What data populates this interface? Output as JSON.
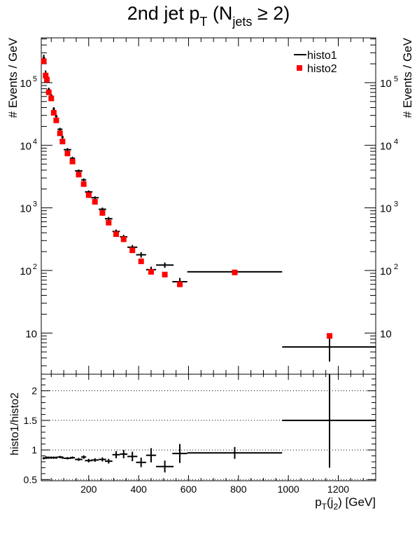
{
  "chart_data": [
    {
      "type": "scatter",
      "title": "2nd jet p_T (N_jets ≥ 2)",
      "title_parts": {
        "main": "2nd jet p",
        "sub1": "T",
        "mid": " (N",
        "sub2": "jets",
        "rel": " ≥ 2)"
      },
      "ylabel": "# Events / GeV",
      "yscale": "log",
      "xlim": [
        10,
        1350
      ],
      "ylim": [
        2.2,
        520000
      ],
      "ytick_labels": [
        "10",
        "10^2",
        "10^3",
        "10^4",
        "10^5"
      ],
      "legend": {
        "placement": "top-right",
        "entries": [
          "histo1",
          "histo2"
        ]
      },
      "series": [
        {
          "name": "histo1",
          "style": "error-bar crosses",
          "color": "#000000",
          "points": [
            {
              "x": 20,
              "xerr": 5,
              "y": 250000,
              "yerr": 30000
            },
            {
              "x": 27.5,
              "xerr": 2.5,
              "y": 145000,
              "yerr": 12000
            },
            {
              "x": 32.5,
              "xerr": 2.5,
              "y": 125000,
              "yerr": 10000
            },
            {
              "x": 40,
              "xerr": 5,
              "y": 78000,
              "yerr": 5000
            },
            {
              "x": 50,
              "xerr": 5,
              "y": 62000,
              "yerr": 4000
            },
            {
              "x": 60,
              "xerr": 5,
              "y": 38000,
              "yerr": 2500
            },
            {
              "x": 70,
              "xerr": 5,
              "y": 29000,
              "yerr": 2000
            },
            {
              "x": 85,
              "xerr": 10,
              "y": 18000,
              "yerr": 1000
            },
            {
              "x": 95,
              "xerr": 5,
              "y": 13500,
              "yerr": 800
            },
            {
              "x": 115,
              "xerr": 15,
              "y": 8500,
              "yerr": 500
            },
            {
              "x": 135,
              "xerr": 10,
              "y": 6200,
              "yerr": 350
            },
            {
              "x": 160,
              "xerr": 15,
              "y": 3900,
              "yerr": 200
            },
            {
              "x": 180,
              "xerr": 10,
              "y": 2800,
              "yerr": 150
            },
            {
              "x": 200,
              "xerr": 15,
              "y": 1800,
              "yerr": 100
            },
            {
              "x": 225,
              "xerr": 15,
              "y": 1450,
              "yerr": 80
            },
            {
              "x": 255,
              "xerr": 15,
              "y": 950,
              "yerr": 60
            },
            {
              "x": 280,
              "xerr": 15,
              "y": 670,
              "yerr": 45
            },
            {
              "x": 310,
              "xerr": 15,
              "y": 420,
              "yerr": 30
            },
            {
              "x": 340,
              "xerr": 15,
              "y": 345,
              "yerr": 25
            },
            {
              "x": 375,
              "xerr": 20,
              "y": 235,
              "yerr": 20
            },
            {
              "x": 410,
              "xerr": 20,
              "y": 178,
              "yerr": 18
            },
            {
              "x": 450,
              "xerr": 20,
              "y": 103,
              "yerr": 12
            },
            {
              "x": 505,
              "xerr": 35,
              "y": 122,
              "yerr": 12
            },
            {
              "x": 565,
              "xerr": 30,
              "y": 66,
              "yerr": 10
            },
            {
              "x": 785,
              "xerr": 190,
              "y": 95,
              "yerr": 6
            },
            {
              "x": 1165,
              "xerr": 190,
              "y": 6,
              "yerr": 2.5
            }
          ]
        },
        {
          "name": "histo2",
          "style": "square markers",
          "color": "#ff0000",
          "points": [
            {
              "x": 20,
              "y": 220000
            },
            {
              "x": 27.5,
              "y": 130000
            },
            {
              "x": 32.5,
              "y": 112000
            },
            {
              "x": 40,
              "y": 70000
            },
            {
              "x": 50,
              "y": 56000
            },
            {
              "x": 60,
              "y": 33000
            },
            {
              "x": 70,
              "y": 25000
            },
            {
              "x": 85,
              "y": 15500
            },
            {
              "x": 95,
              "y": 11500
            },
            {
              "x": 115,
              "y": 7400
            },
            {
              "x": 135,
              "y": 5500
            },
            {
              "x": 160,
              "y": 3400
            },
            {
              "x": 180,
              "y": 2400
            },
            {
              "x": 200,
              "y": 1600
            },
            {
              "x": 225,
              "y": 1250
            },
            {
              "x": 255,
              "y": 830
            },
            {
              "x": 280,
              "y": 580
            },
            {
              "x": 310,
              "y": 380
            },
            {
              "x": 340,
              "y": 315
            },
            {
              "x": 375,
              "y": 210
            },
            {
              "x": 410,
              "y": 140
            },
            {
              "x": 450,
              "y": 95
            },
            {
              "x": 505,
              "y": 86
            },
            {
              "x": 565,
              "y": 60
            },
            {
              "x": 785,
              "y": 93
            },
            {
              "x": 1165,
              "y": 9
            }
          ]
        }
      ]
    },
    {
      "type": "scatter",
      "ylabel": "histo1/histo2",
      "xlabel": "p_T(j_2) [GeV]",
      "xlabel_parts": {
        "p": "p",
        "sub1": "T",
        "mid": "(j",
        "sub2": "2",
        "end": ") [GeV]"
      },
      "xlim": [
        10,
        1350
      ],
      "ylim": [
        0.48,
        2.28
      ],
      "xticks": [
        200,
        400,
        600,
        800,
        1000,
        1200
      ],
      "xtick_labels": [
        "200",
        "400",
        "600",
        "800",
        "1000",
        "1200"
      ],
      "yticks": [
        0.5,
        1,
        1.5,
        2
      ],
      "ytick_labels": [
        "0.5",
        "1",
        "1.5",
        "2"
      ],
      "grid": "dotted horizontal at y ticks",
      "series": [
        {
          "name": "histo1/histo2",
          "style": "error-bar crosses",
          "color": "#000000",
          "points": [
            {
              "x": 20,
              "xerr": 5,
              "y": 0.86,
              "yerr": 0.02
            },
            {
              "x": 27.5,
              "xerr": 2.5,
              "y": 0.87,
              "yerr": 0.02
            },
            {
              "x": 32.5,
              "xerr": 2.5,
              "y": 0.87,
              "yerr": 0.02
            },
            {
              "x": 40,
              "xerr": 5,
              "y": 0.87,
              "yerr": 0.02
            },
            {
              "x": 50,
              "xerr": 5,
              "y": 0.87,
              "yerr": 0.02
            },
            {
              "x": 60,
              "xerr": 5,
              "y": 0.87,
              "yerr": 0.02
            },
            {
              "x": 70,
              "xerr": 5,
              "y": 0.87,
              "yerr": 0.02
            },
            {
              "x": 85,
              "xerr": 10,
              "y": 0.88,
              "yerr": 0.02
            },
            {
              "x": 95,
              "xerr": 5,
              "y": 0.87,
              "yerr": 0.02
            },
            {
              "x": 115,
              "xerr": 15,
              "y": 0.86,
              "yerr": 0.02
            },
            {
              "x": 135,
              "xerr": 10,
              "y": 0.87,
              "yerr": 0.02
            },
            {
              "x": 160,
              "xerr": 15,
              "y": 0.84,
              "yerr": 0.025
            },
            {
              "x": 180,
              "xerr": 10,
              "y": 0.88,
              "yerr": 0.03
            },
            {
              "x": 200,
              "xerr": 15,
              "y": 0.82,
              "yerr": 0.03
            },
            {
              "x": 225,
              "xerr": 15,
              "y": 0.83,
              "yerr": 0.03
            },
            {
              "x": 255,
              "xerr": 15,
              "y": 0.84,
              "yerr": 0.035
            },
            {
              "x": 280,
              "xerr": 15,
              "y": 0.81,
              "yerr": 0.04
            },
            {
              "x": 310,
              "xerr": 15,
              "y": 0.92,
              "yerr": 0.06
            },
            {
              "x": 340,
              "xerr": 15,
              "y": 0.93,
              "yerr": 0.07
            },
            {
              "x": 375,
              "xerr": 20,
              "y": 0.89,
              "yerr": 0.08
            },
            {
              "x": 410,
              "xerr": 20,
              "y": 0.79,
              "yerr": 0.08
            },
            {
              "x": 450,
              "xerr": 20,
              "y": 0.91,
              "yerr": 0.12
            },
            {
              "x": 505,
              "xerr": 35,
              "y": 0.72,
              "yerr": 0.1
            },
            {
              "x": 565,
              "xerr": 30,
              "y": 0.94,
              "yerr": 0.16
            },
            {
              "x": 785,
              "xerr": 190,
              "y": 0.95,
              "yerr": 0.1
            },
            {
              "x": 1165,
              "xerr": 190,
              "y": 1.5,
              "yerr": 0.8
            }
          ]
        }
      ]
    }
  ]
}
